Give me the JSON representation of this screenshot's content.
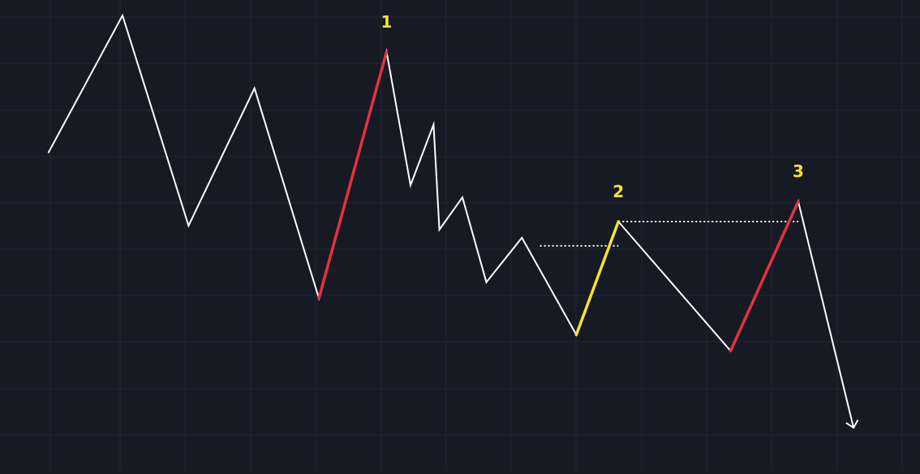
{
  "colors": {
    "background": "#161a25",
    "grid": "#232733",
    "price_line": "#ffffff",
    "impulse": "#e5323f",
    "pullback": "#f5e42c",
    "annotation": "#f5e42c",
    "level_line": "#ffffff"
  },
  "chart_data": {
    "type": "line",
    "title": "",
    "xlabel": "",
    "ylabel": "",
    "grid": true,
    "x_range": [
      0,
      1000
    ],
    "y_range": [
      0,
      100
    ],
    "series": [
      {
        "points": [
          [
            29,
            68
          ],
          [
            119,
            102
          ],
          [
            199,
            50
          ],
          [
            279,
            84
          ],
          [
            357,
            32
          ],
          [
            439,
            93
          ],
          [
            468,
            60
          ],
          [
            496,
            75
          ],
          [
            503,
            49
          ],
          [
            531,
            57
          ],
          [
            560,
            36
          ],
          [
            603,
            47
          ],
          [
            669,
            23
          ],
          [
            720,
            51
          ],
          [
            856,
            19
          ],
          [
            938,
            56
          ],
          [
            1005,
            0
          ]
        ]
      }
    ],
    "highlighted_segments": [
      {
        "color_key": "impulse",
        "from": [
          357,
          32
        ],
        "to": [
          439,
          93
        ]
      },
      {
        "color_key": "pullback",
        "from": [
          669,
          23
        ],
        "to": [
          720,
          51
        ]
      },
      {
        "color_key": "impulse",
        "from": [
          856,
          19
        ],
        "to": [
          938,
          56
        ]
      }
    ],
    "reference_levels": [
      {
        "y": 45,
        "x_from": 625,
        "x_to": 720
      },
      {
        "y": 51,
        "x_from": 720,
        "x_to": 938
      }
    ],
    "annotations": [
      {
        "text": "1",
        "x": 439,
        "y": 93
      },
      {
        "text": "2",
        "x": 720,
        "y": 51
      },
      {
        "text": "3",
        "x": 938,
        "y": 56
      }
    ]
  }
}
